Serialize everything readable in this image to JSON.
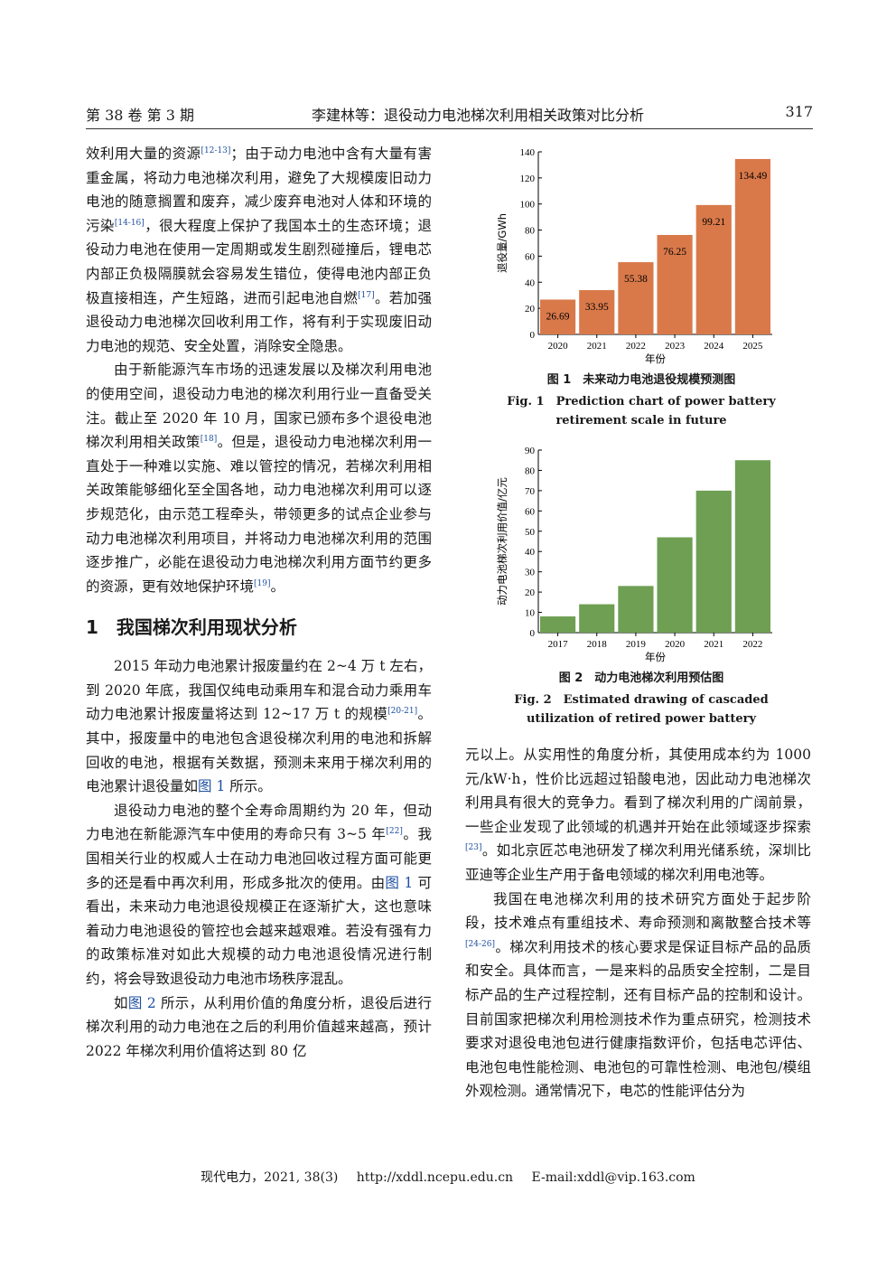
{
  "header": {
    "left": "第 38 卷 第 3 期",
    "center": "李建林等：退役动力电池梯次利用相关政策对比分析",
    "page": "317"
  },
  "left_col": {
    "p1": "效利用大量的资源",
    "p1_ref1": "[12-13]",
    "p1b": "；由于动力电池中含有大量有害重金属，将动力电池梯次利用，避免了大规模废旧动力电池的随意搁置和废弃，减少废弃电池对人体和环境的污染",
    "p1_ref2": "[14-16]",
    "p1c": "，很大程度上保护了我国本土的生态环境；退役动力电池在使用一定周期或发生剧烈碰撞后，锂电芯内部正负极隔膜就会容易发生错位，使得电池内部正负极直接相连，产生短路，进而引起电池自燃",
    "p1_ref3": "[17]",
    "p1d": "。若加强退役动力电池梯次回收利用工作，将有利于实现废旧动力电池的规范、安全处置，消除安全隐患。",
    "p2": "由于新能源汽车市场的迅速发展以及梯次利用电池的使用空间，退役动力电池的梯次利用行业一直备受关注。截止至 2020 年 10 月，国家已颁布多个退役电池梯次利用相关政策",
    "p2_ref1": "[18]",
    "p2b": "。但是，退役动力电池梯次利用一直处于一种难以实施、难以管控的情况，若梯次利用相关政策能够细化至全国各地，动力电池梯次利用可以逐步规范化，由示范工程牵头，带领更多的试点企业参与动力电池梯次利用项目，并将动力电池梯次利用的范围逐步推广，必能在退役动力电池梯次利用方面节约更多的资源，更有效地保护环境",
    "p2_ref2": "[19]",
    "p2c": "。",
    "section": "1　我国梯次利用现状分析",
    "p3": "2015 年动力电池累计报废量约在 2~4 万 t 左右，到 2020 年底，我国仅纯电动乘用车和混合动力乘用车动力电池累计报废量将达到 12~17 万 t 的规模",
    "p3_ref1": "[20-21]",
    "p3b": "。其中，报废量中的电池包含退役梯次利用的电池和拆解回收的电池，根据有关数据，预测未来用于梯次利用的电池累计退役量如",
    "p3_link": "图 1",
    "p3c": " 所示。",
    "p4": "退役动力电池的整个全寿命周期约为 20 年，但动力电池在新能源汽车中使用的寿命只有 3~5 年",
    "p4_ref1": "[22]",
    "p4b": "。我国相关行业的权威人士在动力电池回收过程方面可能更多的还是看中再次利用，形成多批次的使用。由",
    "p4_link": "图 1",
    "p4c": " 可看出，未来动力电池退役规模正在逐渐扩大，这也意味着动力电池退役的管控也会越来越艰难。若没有强有力的政策标准对如此大规模的动力电池退役情况进行制约，将会导致退役动力电池市场秩序混乱。",
    "p5a": "如",
    "p5_link": "图 2",
    "p5": " 所示，从利用价值的角度分析，退役后进行梯次利用的动力电池在之后的利用价值越来越高，预计 2022 年梯次利用价值将达到 80 亿"
  },
  "right_col": {
    "p1": "元以上。从实用性的角度分析，其使用成本约为 1000 元/kW·h，性价比远超过铅酸电池，因此动力电池梯次利用具有很大的竞争力。看到了梯次利用的广阔前景，一些企业发现了此领域的机遇并开始在此领域逐步探索",
    "p1_ref1": "[23]",
    "p1b": "。如北京匠芯电池研发了梯次利用光储系统，深圳比亚迪等企业生产用于备电领域的梯次利用电池等。",
    "p2": "我国在电池梯次利用的技术研究方面处于起步阶段，技术难点有重组技术、寿命预测和离散整合技术等",
    "p2_ref1": "[24-26]",
    "p2b": "。梯次利用技术的核心要求是保证目标产品的品质和安全。具体而言，一是来料的品质安全控制，二是目标产品的生产过程控制，还有目标产品的控制和设计。目前国家把梯次利用检测技术作为重点研究，检测技术要求对退役电池包进行健康指数评价，包括电芯评估、电池包电性能检测、电池包的可靠性检测、电池包/模组外观检测。通常情况下，电芯的性能评估分为"
  },
  "fig1": {
    "caption_zh": "图 1　未来动力电池退役规模预测图",
    "caption_en": "Fig. 1　Prediction chart of power battery retirement scale in future"
  },
  "fig2": {
    "caption_zh": "图 2　动力电池梯次利用预估图",
    "caption_en": "Fig. 2　Estimated drawing of cascaded utilization of retired power battery"
  },
  "footer": {
    "journal": "现代电力，2021, 38(3)",
    "url": "http://xddl.ncepu.edu.cn",
    "email": "E-mail:xddl@vip.163.com"
  },
  "chart_data": [
    {
      "type": "bar",
      "categories": [
        "2020",
        "2021",
        "2022",
        "2023",
        "2024",
        "2025"
      ],
      "values": [
        26.69,
        33.95,
        55.38,
        76.25,
        99.21,
        134.49
      ],
      "data_labels": [
        "26.69",
        "33.95",
        "55.38",
        "76.25",
        "99.21",
        "134.49"
      ],
      "xlabel": "年份",
      "ylabel": "退役量/GWh",
      "ylim": [
        0,
        140
      ],
      "yticks": [
        "0",
        "20",
        "40",
        "60",
        "80",
        "100",
        "120",
        "140"
      ],
      "color": "#D9794A",
      "grid": false
    },
    {
      "type": "bar",
      "categories": [
        "2017",
        "2018",
        "2019",
        "2020",
        "2021",
        "2022"
      ],
      "values": [
        8,
        14,
        23,
        47,
        70,
        85
      ],
      "xlabel": "年份",
      "ylabel": "动力电池梯次利用价值/亿元",
      "ylim": [
        0,
        90
      ],
      "yticks": [
        "0",
        "10",
        "20",
        "30",
        "40",
        "50",
        "60",
        "70",
        "80",
        "90"
      ],
      "color": "#6E9F52",
      "grid": false
    }
  ]
}
